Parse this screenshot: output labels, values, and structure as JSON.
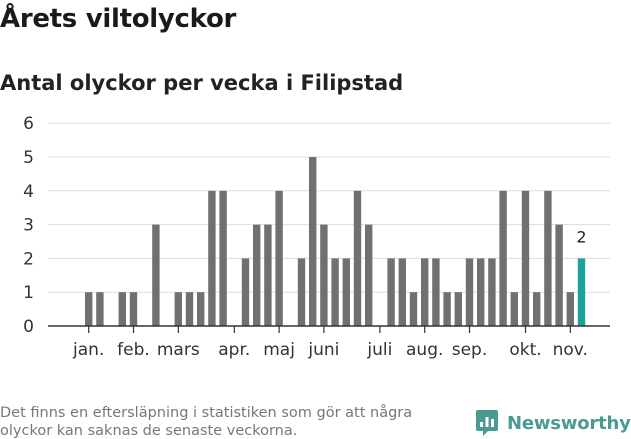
{
  "header": {
    "title": "Årets viltolyckor",
    "subtitle": "Antal olyckor per vecka i Filipstad"
  },
  "footer": {
    "note": "Det finns en eftersläpning i statistiken som gör att några olyckor kan saknas de senaste veckorna.",
    "brand": "Newsworthy"
  },
  "colors": {
    "bar": "#707070",
    "highlight": "#1aa39a",
    "grid": "#dddddd",
    "axis": "#333333",
    "brand": "#4a9a92"
  },
  "chart_data": {
    "type": "bar",
    "x_unit": "week",
    "ylim": [
      0,
      6
    ],
    "yticks": [
      0,
      1,
      2,
      3,
      4,
      5,
      6
    ],
    "grid": true,
    "month_labels": [
      {
        "label": "jan.",
        "week": 2
      },
      {
        "label": "feb.",
        "week": 6
      },
      {
        "label": "mars",
        "week": 10
      },
      {
        "label": "apr.",
        "week": 15
      },
      {
        "label": "maj",
        "week": 19
      },
      {
        "label": "juni",
        "week": 23
      },
      {
        "label": "juli",
        "week": 28
      },
      {
        "label": "aug.",
        "week": 32
      },
      {
        "label": "sep.",
        "week": 36
      },
      {
        "label": "okt.",
        "week": 41
      },
      {
        "label": "nov.",
        "week": 45
      }
    ],
    "weeks": [
      1,
      2,
      3,
      4,
      5,
      6,
      7,
      8,
      9,
      10,
      11,
      12,
      13,
      14,
      15,
      16,
      17,
      18,
      19,
      20,
      21,
      22,
      23,
      24,
      25,
      26,
      27,
      28,
      29,
      30,
      31,
      32,
      33,
      34,
      35,
      36,
      37,
      38,
      39,
      40,
      41,
      42,
      43,
      44,
      45,
      46
    ],
    "values": [
      0,
      1,
      1,
      0,
      1,
      1,
      0,
      3,
      0,
      1,
      1,
      1,
      4,
      4,
      0,
      2,
      3,
      3,
      4,
      0,
      2,
      5,
      3,
      2,
      2,
      4,
      3,
      0,
      2,
      2,
      1,
      2,
      2,
      1,
      1,
      2,
      2,
      2,
      4,
      1,
      4,
      1,
      4,
      3,
      1,
      2
    ],
    "highlight_week": 46,
    "highlight_label": "2"
  }
}
